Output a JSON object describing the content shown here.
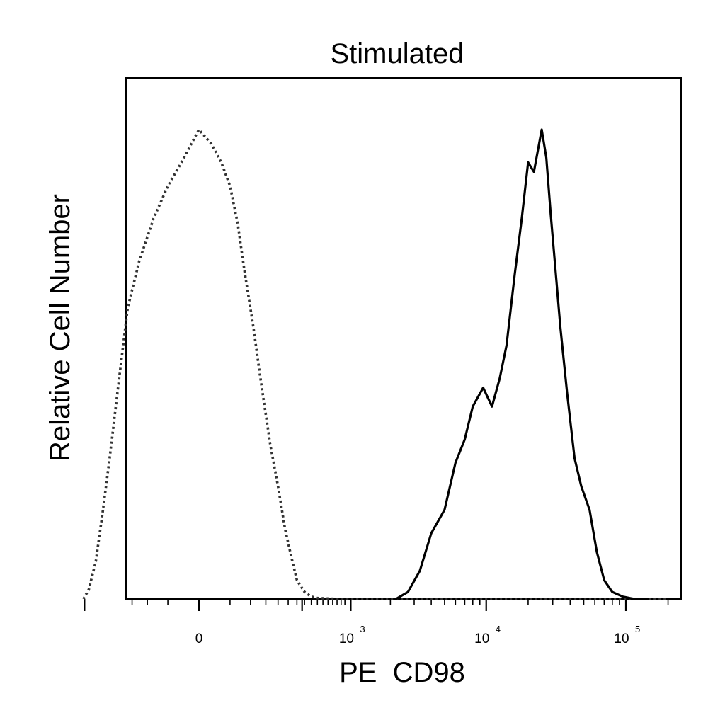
{
  "chart_data": {
    "type": "line",
    "title": "Stimulated",
    "xlabel": "PE  CD98",
    "ylabel": "Relative Cell Number",
    "x_scale": "biexponential",
    "xlim": [
      -700,
      200000
    ],
    "ylim": [
      0,
      100
    ],
    "x_ticks": [
      {
        "value": 0,
        "base": "0",
        "exp": ""
      },
      {
        "value": 1000,
        "base": "10",
        "exp": "3"
      },
      {
        "value": 10000,
        "base": "10",
        "exp": "4"
      },
      {
        "value": 100000,
        "base": "10",
        "exp": "5"
      }
    ],
    "grid": false,
    "series": [
      {
        "style": "dotted",
        "color": "#333333",
        "x": [
          -510,
          -460,
          -400,
          -350,
          -300,
          -250,
          -200,
          -150,
          -100,
          -60,
          -30,
          0,
          20,
          40,
          60,
          80,
          100,
          130,
          160,
          200,
          240,
          280,
          320,
          360,
          420,
          480,
          540,
          650,
          800,
          1000,
          2500,
          200000
        ],
        "y": [
          0,
          2,
          8,
          18,
          30,
          45,
          62,
          72,
          81,
          88,
          93,
          100,
          97,
          93,
          88,
          80,
          70,
          58,
          46,
          33,
          24,
          15,
          9,
          4,
          1.5,
          0.5,
          0.2,
          0.1,
          0,
          0,
          0,
          0
        ]
      },
      {
        "style": "solid",
        "color": "#000000",
        "x": [
          2200,
          2700,
          3300,
          4000,
          5000,
          6000,
          7000,
          8000,
          9500,
          11000,
          12500,
          14000,
          16000,
          18000,
          20000,
          22000,
          25000,
          27000,
          29000,
          31000,
          34000,
          38000,
          43000,
          48000,
          55000,
          62000,
          70000,
          80000,
          95000,
          115000,
          140000
        ],
        "y": [
          0,
          1.5,
          6,
          14,
          19,
          29,
          34,
          41,
          45,
          41,
          47,
          54,
          69,
          81,
          93,
          91,
          100,
          94,
          82,
          72,
          58,
          44,
          30,
          24,
          19,
          10,
          4,
          1.5,
          0.5,
          0,
          0
        ]
      }
    ]
  }
}
